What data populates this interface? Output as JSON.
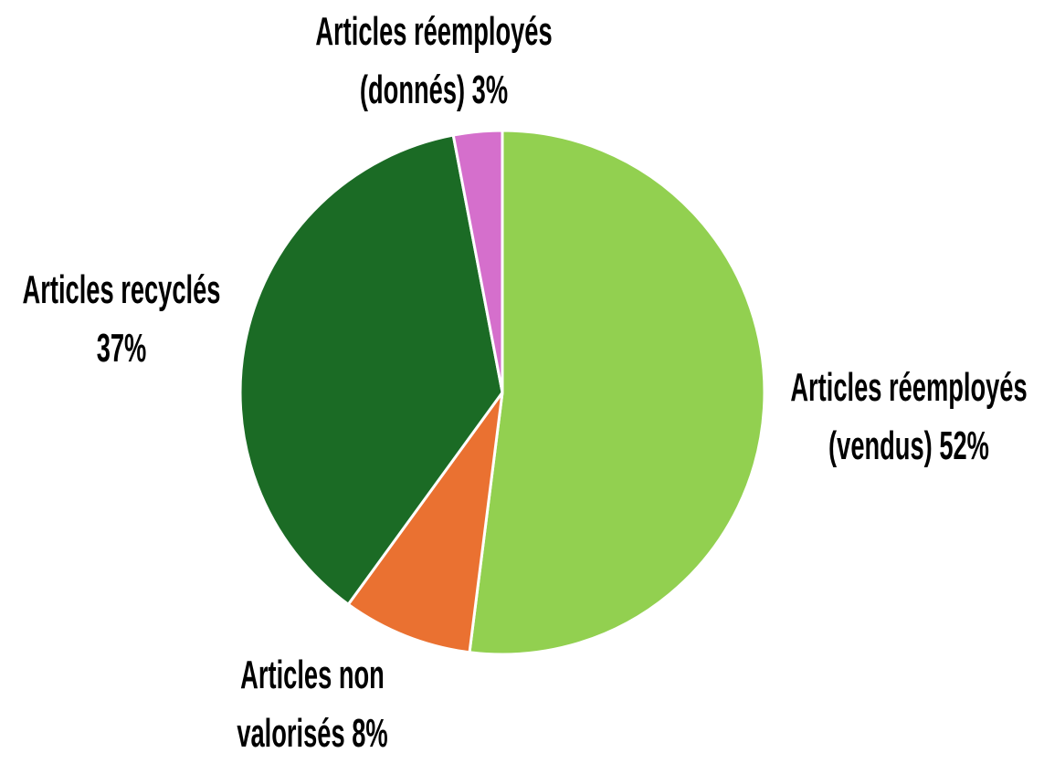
{
  "chart_data": {
    "type": "pie",
    "categories": [
      "Articles réemployés (vendus)",
      "Articles non valorisés",
      "Articles recyclés",
      "Articles réemployés (donnés)"
    ],
    "values": [
      52,
      8,
      37,
      3
    ],
    "value_labels": [
      "52%",
      "8%",
      "37%",
      "3%"
    ],
    "colors": [
      "#92d050",
      "#ea7131",
      "#1b6b25",
      "#d56fcc"
    ]
  }
}
